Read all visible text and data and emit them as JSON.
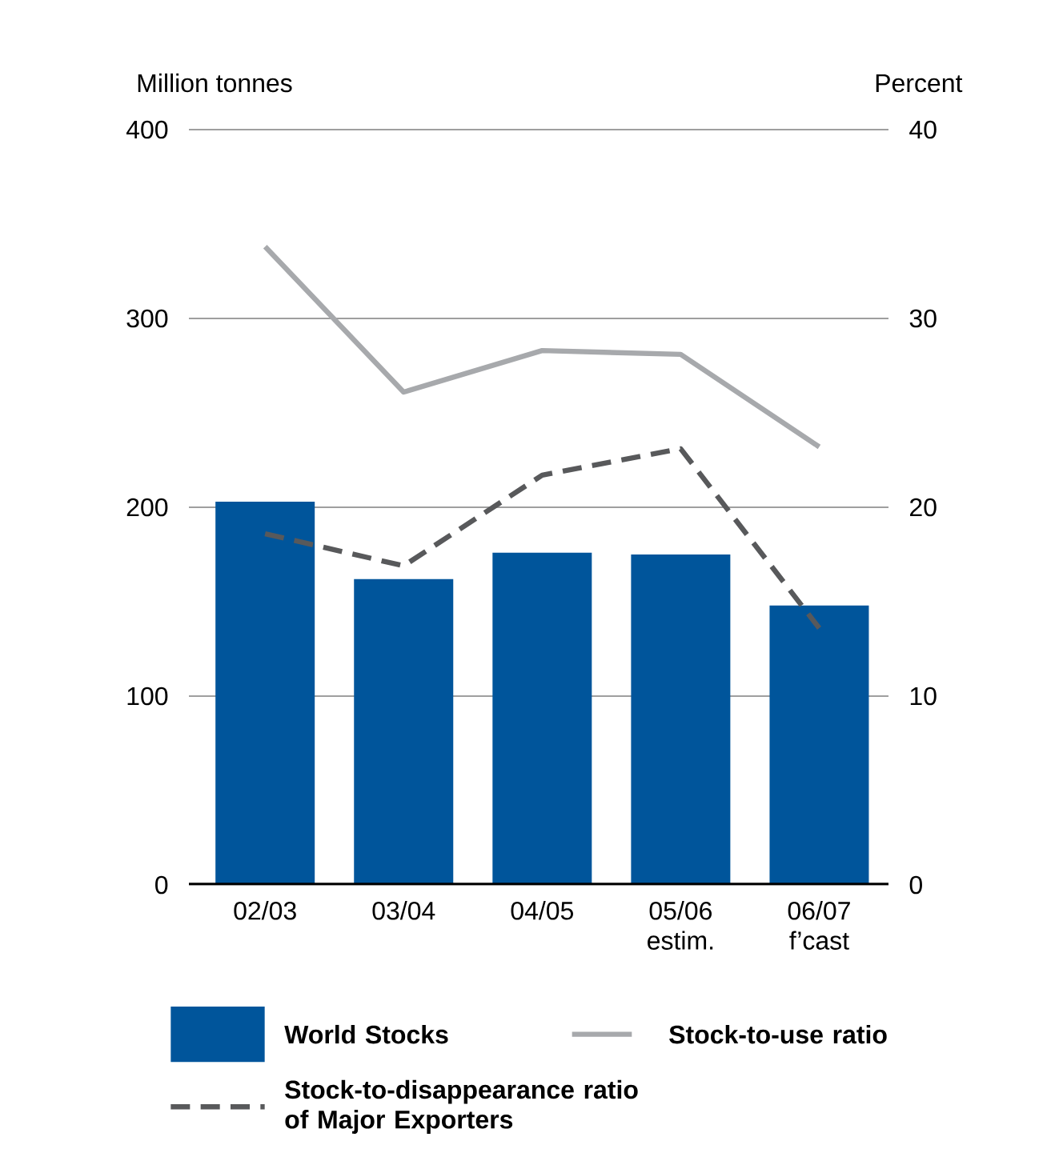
{
  "chart_data": {
    "type": "bar",
    "categories": [
      "02/03",
      "03/04",
      "04/05",
      "05/06 estim.",
      "06/07 f’cast"
    ],
    "series": [
      {
        "name": "World Stocks",
        "type": "bar",
        "color": "#00559b",
        "values": [
          203,
          162,
          176,
          175,
          148
        ]
      },
      {
        "name": "Stock-to-use ratio",
        "type": "line",
        "axis": "y2",
        "color": "#a7a9ac",
        "values": [
          33.8,
          26.1,
          28.3,
          28.1,
          23.2
        ]
      },
      {
        "name": "Stock-to-disappearance ratio of Major Exporters",
        "type": "line",
        "axis": "y2",
        "line_style": "dashed",
        "color": "#58595b",
        "values": [
          18.6,
          16.9,
          21.7,
          23.1,
          13.6
        ]
      }
    ],
    "ylabel": "Million tonnes",
    "y2label": "Percent",
    "ylim": [
      0,
      400
    ],
    "yticks": [
      0,
      100,
      200,
      300,
      400
    ],
    "y2lim": [
      0,
      40
    ],
    "y2ticks": [
      0,
      10,
      20,
      30,
      40
    ],
    "grid": "y",
    "legend": "bottom"
  }
}
